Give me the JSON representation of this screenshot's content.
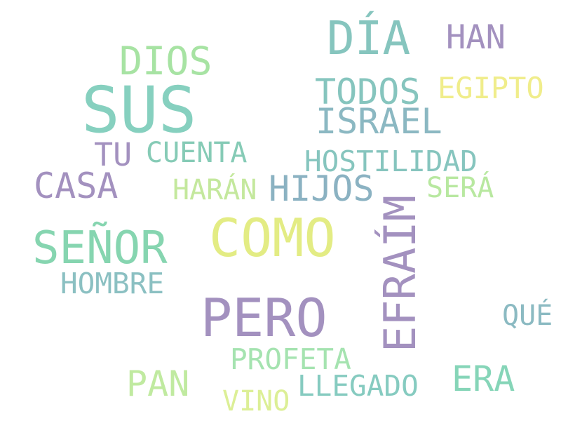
{
  "words": [
    {
      "text": "SUS",
      "color": "#86d0bf"
    },
    {
      "text": "DÍA",
      "color": "#86c5be"
    },
    {
      "text": "COMO",
      "color": "#e3ec84"
    },
    {
      "text": "PERO",
      "color": "#a391bf"
    },
    {
      "text": "EFRAÍM",
      "color": "#a391bf"
    },
    {
      "text": "SEÑOR",
      "color": "#86d5b0"
    },
    {
      "text": "DIOS",
      "color": "#a7e3a3"
    },
    {
      "text": "HAN",
      "color": "#a391bf"
    },
    {
      "text": "TODOS",
      "color": "#86c5be"
    },
    {
      "text": "EGIPTO",
      "color": "#f0ed8b"
    },
    {
      "text": "ISRAEL",
      "color": "#8bb8c2"
    },
    {
      "text": "TU",
      "color": "#a391bf"
    },
    {
      "text": "CUENTA",
      "color": "#86cbb6"
    },
    {
      "text": "HOSTILIDAD",
      "color": "#86c5be"
    },
    {
      "text": "CASA",
      "color": "#a391bf"
    },
    {
      "text": "HARÁN",
      "color": "#c4e89d"
    },
    {
      "text": "HIJOS",
      "color": "#8bb2c2"
    },
    {
      "text": "SERÁ",
      "color": "#b8e8a0"
    },
    {
      "text": "HOMBRE",
      "color": "#8bc0c2"
    },
    {
      "text": "QUÉ",
      "color": "#8bbac2"
    },
    {
      "text": "PROFETA",
      "color": "#a5e3b0"
    },
    {
      "text": "PAN",
      "color": "#c0eaa0"
    },
    {
      "text": "ERA",
      "color": "#86d5b8"
    },
    {
      "text": "LLEGADO",
      "color": "#86cbc0"
    },
    {
      "text": "VINO",
      "color": "#dcef96"
    }
  ]
}
